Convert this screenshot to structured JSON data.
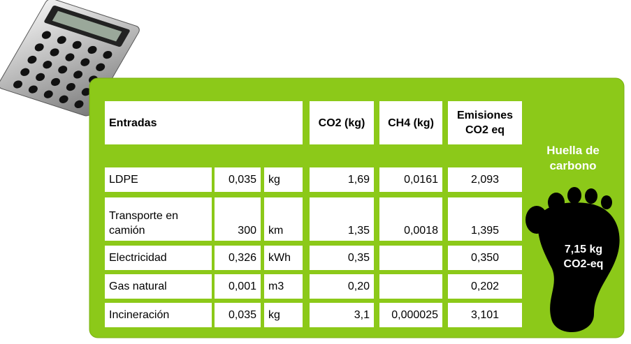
{
  "header": {
    "title": "Entradas",
    "columns": [
      "CO2 (kg)",
      "CH4 (kg)",
      "Emisiones CO2 eq"
    ]
  },
  "rows": [
    [
      "LDPE",
      "0,035",
      "kg",
      "1,69",
      "0,0161",
      "2,093"
    ],
    [
      "Transporte en camión",
      "300",
      "km",
      "1,35",
      "0,0018",
      "1,395"
    ],
    [
      "Electricidad",
      "0,326",
      "kWh",
      "0,35",
      null,
      "0,350"
    ],
    [
      "Gas natural",
      "0,001",
      "m3",
      "0,20",
      null,
      "0,202"
    ],
    [
      "Incineración",
      "0,035",
      "kg",
      "3,1",
      "0,000025",
      "3,101"
    ]
  ],
  "side_label": "Huella de carbono",
  "total": "7,15 kg CO2-eq"
}
